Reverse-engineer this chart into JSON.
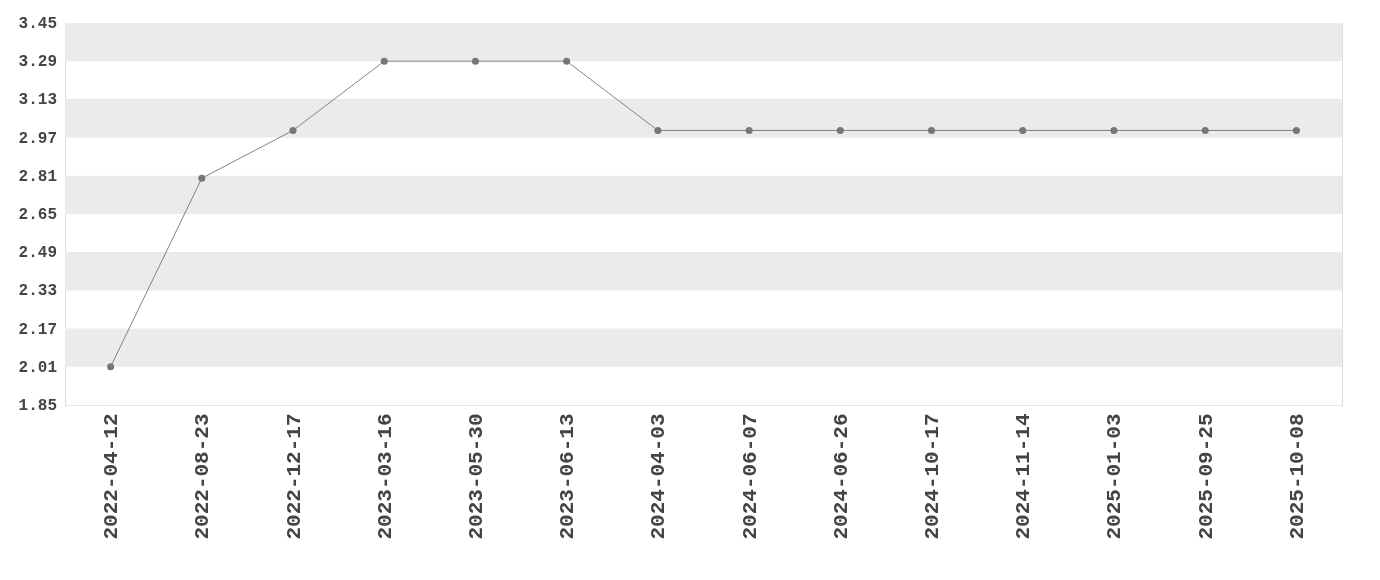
{
  "chart_data": {
    "type": "line",
    "categories": [
      "2022-04-12",
      "2022-08-23",
      "2022-12-17",
      "2023-03-16",
      "2023-05-30",
      "2023-06-13",
      "2024-04-03",
      "2024-06-07",
      "2024-06-26",
      "2024-10-17",
      "2024-11-14",
      "2025-01-03",
      "2025-09-25",
      "2025-10-08"
    ],
    "series": [
      {
        "color": "#666666",
        "values": [
          2.01,
          2.8,
          3.0,
          3.29,
          3.29,
          3.29,
          3.0,
          3.0,
          3.0,
          3.0,
          3.0,
          3.0,
          3.0,
          3.0
        ]
      }
    ],
    "ylim": [
      1.85,
      3.45
    ],
    "yticks": [
      1.85,
      2.01,
      2.17,
      2.33,
      2.49,
      2.65,
      2.81,
      2.97,
      3.13,
      3.29,
      3.45
    ],
    "grid": "y",
    "marker": "circle",
    "line_style": "solid"
  }
}
